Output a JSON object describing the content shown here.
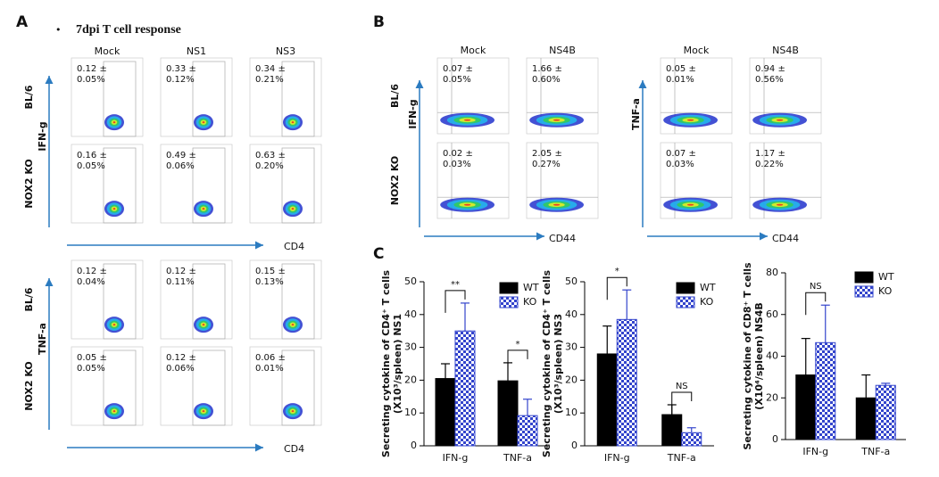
{
  "panel_a": {
    "label": "A",
    "bullet": "•",
    "title": "7dpi T cell response",
    "columns": [
      "Mock",
      "NS1",
      "NS3"
    ],
    "blocks": [
      {
        "y_axis": "IFN-g",
        "x_axis": "CD4",
        "rows": [
          {
            "label": "BL/6",
            "gates": [
              [
                "0.12 ±",
                "0.05%"
              ],
              [
                "0.33 ±",
                "0.12%"
              ],
              [
                "0.34 ±",
                "0.21%"
              ]
            ]
          },
          {
            "label": "NOX2 KO",
            "gates": [
              [
                "0.16 ±",
                "0.05%"
              ],
              [
                "0.49 ±",
                "0.06%"
              ],
              [
                "0.63 ±",
                "0.20%"
              ]
            ]
          }
        ]
      },
      {
        "y_axis": "TNF-a",
        "x_axis": "CD4",
        "rows": [
          {
            "label": "BL/6",
            "gates": [
              [
                "0.12 ±",
                "0.04%"
              ],
              [
                "0.12 ±",
                "0.11%"
              ],
              [
                "0.15 ±",
                "0.13%"
              ]
            ]
          },
          {
            "label": "NOX2 KO",
            "gates": [
              [
                "0.05 ±",
                "0.05%"
              ],
              [
                "0.12 ±",
                "0.06%"
              ],
              [
                "0.06 ±",
                "0.01%"
              ]
            ]
          }
        ]
      }
    ]
  },
  "panel_b": {
    "label": "B",
    "row_labels": [
      "BL/6",
      "NOX2 KO"
    ],
    "blocks": [
      {
        "columns": [
          "Mock",
          "NS4B"
        ],
        "y_axis": "IFN-g",
        "x_axis": "CD44",
        "gates": [
          [
            [
              "0.07 ±",
              "0.05%"
            ],
            [
              "1.66 ±",
              "0.60%"
            ]
          ],
          [
            [
              "0.02 ±",
              "0.03%"
            ],
            [
              "2.05 ±",
              "0.27%"
            ]
          ]
        ]
      },
      {
        "columns": [
          "Mock",
          "NS4B"
        ],
        "y_axis": "TNF-a",
        "x_axis": "CD44",
        "gates": [
          [
            [
              "0.05 ±",
              "0.01%"
            ],
            [
              "0.94 ±",
              "0.56%"
            ]
          ],
          [
            [
              "0.07 ±",
              "0.03%"
            ],
            [
              "1.17 ±",
              "0.22%"
            ]
          ]
        ]
      }
    ]
  },
  "panel_c_label": "C",
  "chart_data": [
    {
      "type": "bar",
      "ylabel": [
        "Secreting cytokine of CD4⁺ T cells",
        "(X10³/spleen) NS1"
      ],
      "categories": [
        "IFN-g",
        "TNF-a"
      ],
      "ylim": [
        0,
        50
      ],
      "yticks": [
        0,
        10,
        20,
        30,
        40,
        50
      ],
      "series": [
        {
          "name": "WT",
          "color": "#000000",
          "values": [
            20.5,
            19.8
          ],
          "errors": [
            4.5,
            5.5
          ]
        },
        {
          "name": "KO",
          "color": "#3344cc",
          "values": [
            35,
            9.2
          ],
          "errors": [
            8.5,
            5
          ]
        }
      ],
      "annotations": [
        {
          "text": "**",
          "category": "IFN-g"
        },
        {
          "text": "*",
          "category": "TNF-a"
        }
      ]
    },
    {
      "type": "bar",
      "ylabel": [
        "Secreting cytokine of CD4⁺ T cells",
        "(X10³/spleen) NS3"
      ],
      "categories": [
        "IFN-g",
        "TNF-a"
      ],
      "ylim": [
        0,
        50
      ],
      "yticks": [
        0,
        10,
        20,
        30,
        40,
        50
      ],
      "series": [
        {
          "name": "WT",
          "color": "#000000",
          "values": [
            28,
            9.5
          ],
          "errors": [
            8.5,
            3
          ]
        },
        {
          "name": "KO",
          "color": "#3344cc",
          "values": [
            38.5,
            4
          ],
          "errors": [
            9,
            1.5
          ]
        }
      ],
      "annotations": [
        {
          "text": "*",
          "category": "IFN-g"
        },
        {
          "text": "NS",
          "category": "TNF-a"
        }
      ]
    },
    {
      "type": "bar",
      "ylabel": [
        "Secreting cytokine of CD8⁺ T cells",
        "(X10⁴/spleen) NS4B"
      ],
      "categories": [
        "IFN-g",
        "TNF-a"
      ],
      "ylim": [
        0,
        80
      ],
      "yticks": [
        0,
        20,
        40,
        60,
        80
      ],
      "series": [
        {
          "name": "WT",
          "color": "#000000",
          "values": [
            31,
            20
          ],
          "errors": [
            17.5,
            11
          ]
        },
        {
          "name": "KO",
          "color": "#3344cc",
          "values": [
            46.5,
            26
          ],
          "errors": [
            18,
            1
          ]
        }
      ],
      "annotations": [
        {
          "text": "NS",
          "category": "IFN-g"
        }
      ]
    }
  ]
}
